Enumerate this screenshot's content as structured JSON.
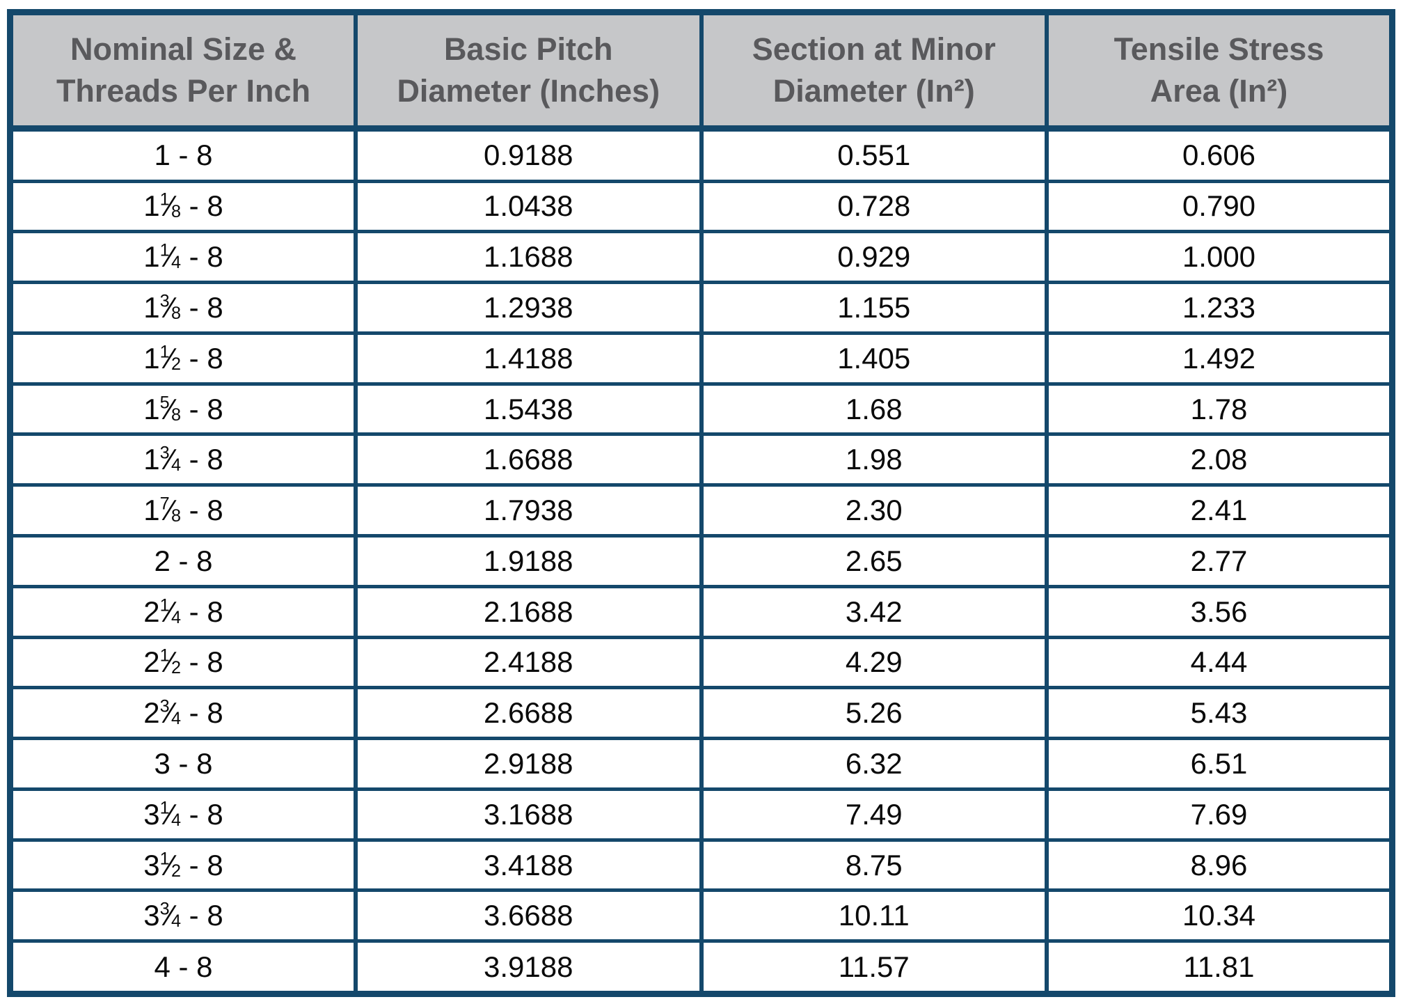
{
  "table": {
    "title_semantic": "8-thread-series-bolt-dimensions",
    "size_separator": " - ",
    "fraction_slash": "⁄",
    "columns": [
      {
        "line1": "Nominal Size &",
        "line2": "Threads Per Inch"
      },
      {
        "line1": "Basic Pitch",
        "line2": "Diameter (Inches)"
      },
      {
        "line1": "Section at Minor",
        "line2": "Diameter (In²)"
      },
      {
        "line1": "Tensile Stress",
        "line2": "Area (In²)"
      }
    ],
    "rows": [
      {
        "whole": "1",
        "num": "",
        "den": "",
        "tpi": "8",
        "pitch": "0.9188",
        "minor": "0.551",
        "tensile": "0.606"
      },
      {
        "whole": "1",
        "num": "1",
        "den": "8",
        "tpi": "8",
        "pitch": "1.0438",
        "minor": "0.728",
        "tensile": "0.790"
      },
      {
        "whole": "1",
        "num": "1",
        "den": "4",
        "tpi": "8",
        "pitch": "1.1688",
        "minor": "0.929",
        "tensile": "1.000"
      },
      {
        "whole": "1",
        "num": "3",
        "den": "8",
        "tpi": "8",
        "pitch": "1.2938",
        "minor": "1.155",
        "tensile": "1.233"
      },
      {
        "whole": "1",
        "num": "1",
        "den": "2",
        "tpi": "8",
        "pitch": "1.4188",
        "minor": "1.405",
        "tensile": "1.492"
      },
      {
        "whole": "1",
        "num": "5",
        "den": "8",
        "tpi": "8",
        "pitch": "1.5438",
        "minor": "1.68",
        "tensile": "1.78"
      },
      {
        "whole": "1",
        "num": "3",
        "den": "4",
        "tpi": "8",
        "pitch": "1.6688",
        "minor": "1.98",
        "tensile": "2.08"
      },
      {
        "whole": "1",
        "num": "7",
        "den": "8",
        "tpi": "8",
        "pitch": "1.7938",
        "minor": "2.30",
        "tensile": "2.41"
      },
      {
        "whole": "2",
        "num": "",
        "den": "",
        "tpi": "8",
        "pitch": "1.9188",
        "minor": "2.65",
        "tensile": "2.77"
      },
      {
        "whole": "2",
        "num": "1",
        "den": "4",
        "tpi": "8",
        "pitch": "2.1688",
        "minor": "3.42",
        "tensile": "3.56"
      },
      {
        "whole": "2",
        "num": "1",
        "den": "2",
        "tpi": "8",
        "pitch": "2.4188",
        "minor": "4.29",
        "tensile": "4.44"
      },
      {
        "whole": "2",
        "num": "3",
        "den": "4",
        "tpi": "8",
        "pitch": "2.6688",
        "minor": "5.26",
        "tensile": "5.43"
      },
      {
        "whole": "3",
        "num": "",
        "den": "",
        "tpi": "8",
        "pitch": "2.9188",
        "minor": "6.32",
        "tensile": "6.51"
      },
      {
        "whole": "3",
        "num": "1",
        "den": "4",
        "tpi": "8",
        "pitch": "3.1688",
        "minor": "7.49",
        "tensile": "7.69"
      },
      {
        "whole": "3",
        "num": "1",
        "den": "2",
        "tpi": "8",
        "pitch": "3.4188",
        "minor": "8.75",
        "tensile": "8.96"
      },
      {
        "whole": "3",
        "num": "3",
        "den": "4",
        "tpi": "8",
        "pitch": "3.6688",
        "minor": "10.11",
        "tensile": "10.34"
      },
      {
        "whole": "4",
        "num": "",
        "den": "",
        "tpi": "8",
        "pitch": "3.9188",
        "minor": "11.57",
        "tensile": "11.81"
      }
    ]
  },
  "colors": {
    "border": "#14486b",
    "header_bg": "#c6c7c9",
    "header_text": "#59595c",
    "body_text": "#0a0a0a"
  }
}
